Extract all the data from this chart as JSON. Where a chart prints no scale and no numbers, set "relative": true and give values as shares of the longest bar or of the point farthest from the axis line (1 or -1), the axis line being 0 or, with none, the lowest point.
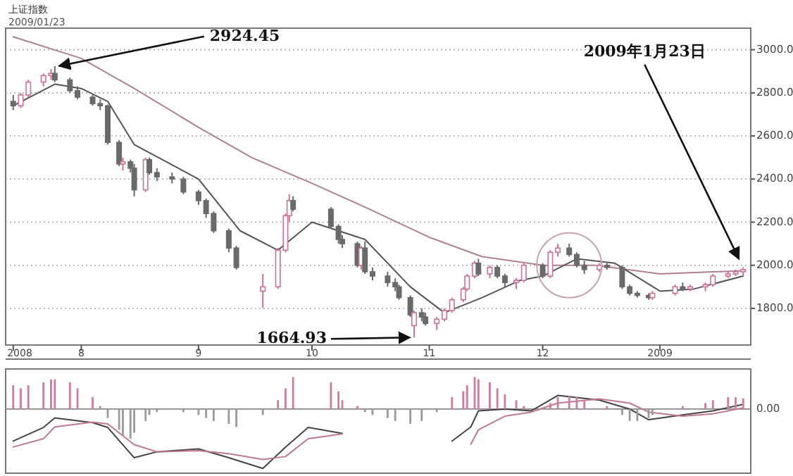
{
  "chart_data": [
    {
      "type": "candlestick",
      "title": "上证指数",
      "subtitle": "2009/01/23",
      "x": [
        "2008-07-14",
        "2008-07-16",
        "2008-07-18",
        "2008-07-22",
        "2008-07-24",
        "2008-07-25",
        "2008-07-29",
        "2008-07-31",
        "2008-08-04",
        "2008-08-06",
        "2008-08-08",
        "2008-08-11",
        "2008-08-12",
        "2008-08-14",
        "2008-08-15",
        "2008-08-18",
        "2008-08-19",
        "2008-08-21",
        "2008-08-25",
        "2008-08-28",
        "2008-09-01",
        "2008-09-03",
        "2008-09-05",
        "2008-09-09",
        "2008-09-11",
        "2008-09-18",
        "2008-09-22",
        "2008-09-24",
        "2008-09-25",
        "2008-09-26",
        "2008-10-06",
        "2008-10-08",
        "2008-10-09",
        "2008-10-13",
        "2008-10-14",
        "2008-10-15",
        "2008-10-17",
        "2008-10-21",
        "2008-10-23",
        "2008-10-24",
        "2008-10-27",
        "2008-10-28",
        "2008-10-30",
        "2008-10-31",
        "2008-11-03",
        "2008-11-05",
        "2008-11-07",
        "2008-11-10",
        "2008-11-11",
        "2008-11-13",
        "2008-11-14",
        "2008-11-17",
        "2008-11-19",
        "2008-11-21",
        "2008-11-24",
        "2008-11-26",
        "2008-12-01",
        "2008-12-03",
        "2008-12-05",
        "2008-12-08",
        "2008-12-10",
        "2008-12-12",
        "2008-12-16",
        "2008-12-18",
        "2008-12-22",
        "2008-12-24",
        "2008-12-26",
        "2008-12-29",
        "2008-12-30",
        "2009-01-05",
        "2009-01-07",
        "2009-01-09",
        "2009-01-13",
        "2009-01-15",
        "2009-01-19",
        "2009-01-21",
        "2009-01-23"
      ],
      "ohlc": [
        [
          2760,
          2790,
          2720,
          2740
        ],
        [
          2740,
          2800,
          2730,
          2790
        ],
        [
          2790,
          2860,
          2780,
          2850
        ],
        [
          2850,
          2890,
          2830,
          2880
        ],
        [
          2880,
          2910,
          2860,
          2890
        ],
        [
          2890,
          2924.45,
          2850,
          2860
        ],
        [
          2860,
          2870,
          2800,
          2810
        ],
        [
          2810,
          2830,
          2770,
          2780
        ],
        [
          2780,
          2790,
          2740,
          2750
        ],
        [
          2750,
          2770,
          2720,
          2740
        ],
        [
          2740,
          2745,
          2560,
          2570
        ],
        [
          2570,
          2580,
          2460,
          2470
        ],
        [
          2470,
          2500,
          2440,
          2480
        ],
        [
          2480,
          2490,
          2430,
          2450
        ],
        [
          2450,
          2470,
          2320,
          2350
        ],
        [
          2350,
          2500,
          2340,
          2490
        ],
        [
          2490,
          2500,
          2420,
          2430
        ],
        [
          2430,
          2450,
          2390,
          2410
        ],
        [
          2410,
          2430,
          2380,
          2400
        ],
        [
          2400,
          2410,
          2330,
          2340
        ],
        [
          2340,
          2350,
          2280,
          2300
        ],
        [
          2300,
          2310,
          2220,
          2240
        ],
        [
          2240,
          2250,
          2150,
          2160
        ],
        [
          2160,
          2170,
          2060,
          2080
        ],
        [
          2080,
          2090,
          1980,
          1990
        ],
        [
          1880,
          1960,
          1802,
          1900
        ],
        [
          1900,
          2080,
          1890,
          2070
        ],
        [
          2070,
          2240,
          2060,
          2230
        ],
        [
          2230,
          2330,
          2200,
          2300
        ],
        [
          2300,
          2320,
          2250,
          2260
        ],
        [
          2260,
          2270,
          2170,
          2180
        ],
        [
          2180,
          2190,
          2100,
          2120
        ],
        [
          2120,
          2140,
          2080,
          2100
        ],
        [
          2100,
          2110,
          1990,
          2000
        ],
        [
          2000,
          2090,
          1980,
          2080
        ],
        [
          2080,
          2110,
          1960,
          1970
        ],
        [
          1970,
          1990,
          1930,
          1950
        ],
        [
          1950,
          1970,
          1900,
          1920
        ],
        [
          1920,
          1940,
          1880,
          1900
        ],
        [
          1900,
          1910,
          1840,
          1850
        ],
        [
          1850,
          1860,
          1760,
          1770
        ],
        [
          1720,
          1790,
          1664.93,
          1780
        ],
        [
          1780,
          1800,
          1740,
          1760
        ],
        [
          1760,
          1780,
          1720,
          1730
        ],
        [
          1730,
          1760,
          1700,
          1750
        ],
        [
          1750,
          1800,
          1740,
          1790
        ],
        [
          1790,
          1850,
          1780,
          1840
        ],
        [
          1840,
          1900,
          1830,
          1890
        ],
        [
          1890,
          1960,
          1880,
          1950
        ],
        [
          1950,
          2020,
          1940,
          2010
        ],
        [
          2010,
          2030,
          1950,
          1960
        ],
        [
          1960,
          2000,
          1940,
          1990
        ],
        [
          1990,
          2000,
          1940,
          1950
        ],
        [
          1950,
          1960,
          1900,
          1920
        ],
        [
          1920,
          1940,
          1890,
          1930
        ],
        [
          1930,
          2010,
          1920,
          2000
        ],
        [
          2000,
          2010,
          1940,
          1950
        ],
        [
          1950,
          2070,
          1940,
          2060
        ],
        [
          2060,
          2100,
          2040,
          2080
        ],
        [
          2080,
          2100,
          2040,
          2050
        ],
        [
          2050,
          2060,
          1990,
          2000
        ],
        [
          2000,
          2020,
          1960,
          1980
        ],
        [
          1980,
          2010,
          1970,
          2000
        ],
        [
          2000,
          2010,
          1980,
          1990
        ],
        [
          1990,
          2000,
          1890,
          1900
        ],
        [
          1900,
          1910,
          1860,
          1870
        ],
        [
          1870,
          1880,
          1850,
          1860
        ],
        [
          1860,
          1870,
          1840,
          1850
        ],
        [
          1850,
          1880,
          1840,
          1870
        ],
        [
          1870,
          1910,
          1860,
          1900
        ],
        [
          1900,
          1920,
          1880,
          1890
        ],
        [
          1890,
          1910,
          1880,
          1900
        ],
        [
          1900,
          1920,
          1880,
          1910
        ],
        [
          1910,
          1960,
          1900,
          1950
        ],
        [
          1950,
          1970,
          1940,
          1960
        ],
        [
          1960,
          1980,
          1950,
          1970
        ],
        [
          1970,
          1990,
          1950,
          1980
        ]
      ],
      "series": [
        {
          "type": "line",
          "color": "#b08090",
          "x": [
            "2008-07-14",
            "2008-08-01",
            "2008-08-15",
            "2008-09-01",
            "2008-09-15",
            "2008-10-01",
            "2008-10-15",
            "2008-11-01",
            "2008-11-15",
            "2008-12-01",
            "2008-12-15",
            "2009-01-01",
            "2009-01-23"
          ],
          "values": [
            3060,
            2960,
            2820,
            2640,
            2500,
            2380,
            2270,
            2130,
            2040,
            2000,
            2000,
            1960,
            1975
          ]
        },
        {
          "type": "line",
          "color": "#555555",
          "x": [
            "2008-07-14",
            "2008-07-25",
            "2008-08-01",
            "2008-08-08",
            "2008-08-15",
            "2008-09-01",
            "2008-09-12",
            "2008-09-22",
            "2008-10-01",
            "2008-10-15",
            "2008-10-27",
            "2008-11-05",
            "2008-11-15",
            "2008-11-25",
            "2008-12-01",
            "2008-12-10",
            "2008-12-20",
            "2009-01-01",
            "2009-01-10",
            "2009-01-23"
          ],
          "values": [
            2740,
            2840,
            2820,
            2760,
            2560,
            2400,
            2160,
            2070,
            2200,
            2120,
            1900,
            1780,
            1850,
            1930,
            1950,
            2030,
            2010,
            1880,
            1890,
            1950
          ]
        }
      ],
      "xlim": [
        "2008-07-12",
        "2009-01-25"
      ],
      "xticks": [
        {
          "value": "2008-07-14",
          "label": "2008"
        },
        {
          "value": "2008-08-01",
          "label": "8"
        },
        {
          "value": "2008-09-01",
          "label": "9"
        },
        {
          "value": "2008-10-01",
          "label": "10"
        },
        {
          "value": "2008-11-01",
          "label": "11"
        },
        {
          "value": "2008-12-01",
          "label": "12"
        },
        {
          "value": "2009-01-01",
          "label": "2009"
        }
      ],
      "ylim": [
        1630,
        3100
      ],
      "yticks": [
        {
          "value": 1800,
          "label": "1800.0"
        },
        {
          "value": 2000,
          "label": "2000.0"
        },
        {
          "value": 2200,
          "label": "2200.0"
        },
        {
          "value": 2400,
          "label": "2400.0"
        },
        {
          "value": 2600,
          "label": "2600.0"
        },
        {
          "value": 2800,
          "label": "2800.0"
        },
        {
          "value": 3000,
          "label": "3000.0"
        }
      ],
      "grid": "y",
      "annotations": [
        {
          "text": "2924.45",
          "x": "2008-07-25",
          "y": 2924.45
        },
        {
          "text": "1664.93",
          "x": "2008-10-28",
          "y": 1664.93
        },
        {
          "text": "2009年1月23日",
          "x": "2009-01-23",
          "y": 1990
        }
      ]
    },
    {
      "type": "bar",
      "relative": true,
      "x": [
        "2008-07-14",
        "2008-07-16",
        "2008-07-18",
        "2008-07-22",
        "2008-07-24",
        "2008-07-25",
        "2008-07-29",
        "2008-07-31",
        "2008-08-04",
        "2008-08-06",
        "2008-08-08",
        "2008-08-11",
        "2008-08-12",
        "2008-08-14",
        "2008-08-15",
        "2008-08-18",
        "2008-08-19",
        "2008-08-21",
        "2008-08-28",
        "2008-09-01",
        "2008-09-03",
        "2008-09-05",
        "2008-09-09",
        "2008-09-11",
        "2008-09-18",
        "2008-09-22",
        "2008-09-24",
        "2008-09-26",
        "2008-10-06",
        "2008-10-08",
        "2008-10-09",
        "2008-10-13",
        "2008-10-15",
        "2008-10-17",
        "2008-10-21",
        "2008-10-23",
        "2008-10-27",
        "2008-10-30",
        "2008-11-03",
        "2008-11-07",
        "2008-11-10",
        "2008-11-11",
        "2008-11-13",
        "2008-11-14",
        "2008-11-17",
        "2008-11-19",
        "2008-11-21",
        "2008-11-24",
        "2008-11-26",
        "2008-12-03",
        "2008-12-05",
        "2008-12-08",
        "2008-12-10",
        "2008-12-12",
        "2008-12-18",
        "2008-12-22",
        "2008-12-24",
        "2008-12-26",
        "2008-12-29",
        "2008-12-30",
        "2009-01-07",
        "2009-01-13",
        "2009-01-15",
        "2009-01-19",
        "2009-01-21",
        "2009-01-23"
      ],
      "values": [
        0.4,
        0.35,
        0.4,
        0.45,
        0.5,
        0.5,
        0.45,
        0.35,
        0.2,
        0.05,
        -0.15,
        -0.35,
        -0.45,
        -0.5,
        -0.4,
        -0.2,
        -0.1,
        -0.05,
        -0.05,
        -0.1,
        -0.15,
        -0.2,
        -0.25,
        -0.3,
        -0.1,
        0.15,
        0.35,
        0.54,
        0.45,
        0.3,
        0.15,
        0.05,
        -0.05,
        -0.1,
        -0.15,
        -0.2,
        -0.25,
        -0.2,
        -0.05,
        0.2,
        0.3,
        0.4,
        0.54,
        0.5,
        0.45,
        0.35,
        0.25,
        0.15,
        0.05,
        0.1,
        0.2,
        0.22,
        0.2,
        0.15,
        0.05,
        -0.1,
        -0.2,
        -0.2,
        -0.15,
        -0.1,
        0.05,
        0.1,
        0.15,
        0.2,
        0.2,
        0.18
      ],
      "colors": [
        "#d07aa0",
        "#d07aa0",
        "#d07aa0",
        "#d07aa0",
        "#d07aa0",
        "#d07aa0",
        "#d07aa0",
        "#d07aa0",
        "#d07aa0",
        "#d07aa0",
        "#999999",
        "#999999",
        "#999999",
        "#999999",
        "#999999",
        "#999999",
        "#999999",
        "#999999",
        "#999999",
        "#999999",
        "#999999",
        "#999999",
        "#999999",
        "#999999",
        "#999999",
        "#d07aa0",
        "#d07aa0",
        "#d07aa0",
        "#d07aa0",
        "#d07aa0",
        "#d07aa0",
        "#d07aa0",
        "#999999",
        "#999999",
        "#999999",
        "#999999",
        "#999999",
        "#999999",
        "#999999",
        "#d07aa0",
        "#d07aa0",
        "#d07aa0",
        "#d07aa0",
        "#d07aa0",
        "#d07aa0",
        "#d07aa0",
        "#d07aa0",
        "#d07aa0",
        "#d07aa0",
        "#d07aa0",
        "#d07aa0",
        "#d07aa0",
        "#d07aa0",
        "#d07aa0",
        "#d07aa0",
        "#999999",
        "#999999",
        "#999999",
        "#999999",
        "#999999",
        "#d07aa0",
        "#d07aa0",
        "#d07aa0",
        "#d07aa0",
        "#d07aa0",
        "#d07aa0"
      ],
      "series": [
        {
          "type": "line",
          "color": "#444444",
          "x": [
            "2008-07-14",
            "2008-07-22",
            "2008-07-25",
            "2008-08-04",
            "2008-08-08",
            "2008-08-15",
            "2008-08-21",
            "2008-09-01",
            "2008-09-09",
            "2008-09-18",
            "2008-09-24",
            "2008-09-30",
            "2008-10-09",
            "2008-10-24",
            "2008-11-07",
            "2008-11-12",
            "2008-11-14",
            "2008-11-21",
            "2008-11-28",
            "2008-12-05",
            "2008-12-16",
            "2008-12-24",
            "2008-12-29",
            "2009-01-07",
            "2009-01-15",
            "2009-01-23"
          ],
          "values": [
            -0.54,
            -0.31,
            -0.15,
            -0.23,
            -0.31,
            -0.82,
            -0.72,
            -0.67,
            -0.82,
            -1,
            -0.64,
            -0.31,
            -0.41,
            null,
            -0.54,
            -0.3,
            -0.03,
            0,
            -0.03,
            0.23,
            0.15,
            0,
            -0.18,
            -0.1,
            -0.03,
            0.08
          ]
        },
        {
          "type": "line",
          "color": "#c07890",
          "x": [
            "2008-07-14",
            "2008-07-22",
            "2008-07-25",
            "2008-08-04",
            "2008-08-08",
            "2008-08-15",
            "2008-08-21",
            "2008-09-01",
            "2008-09-09",
            "2008-09-18",
            "2008-09-24",
            "2008-09-30",
            "2008-10-09",
            "2008-10-24",
            "2008-11-07",
            "2008-11-12",
            "2008-11-14",
            "2008-11-21",
            "2008-11-28",
            "2008-12-05",
            "2008-12-16",
            "2008-12-24",
            "2008-12-29",
            "2009-01-07",
            "2009-01-15",
            "2009-01-23"
          ],
          "values": [
            -0.64,
            -0.5,
            -0.3,
            -0.22,
            -0.25,
            -0.6,
            -0.72,
            -0.7,
            -0.75,
            -0.85,
            -0.8,
            -0.5,
            -0.42,
            null,
            null,
            -0.59,
            -0.35,
            -0.12,
            -0.05,
            0.1,
            0.17,
            0.1,
            -0.05,
            -0.12,
            -0.08,
            0.02
          ]
        }
      ],
      "xlim": [
        "2008-07-12",
        "2009-01-25"
      ],
      "annotations": [
        "0.00"
      ]
    }
  ]
}
